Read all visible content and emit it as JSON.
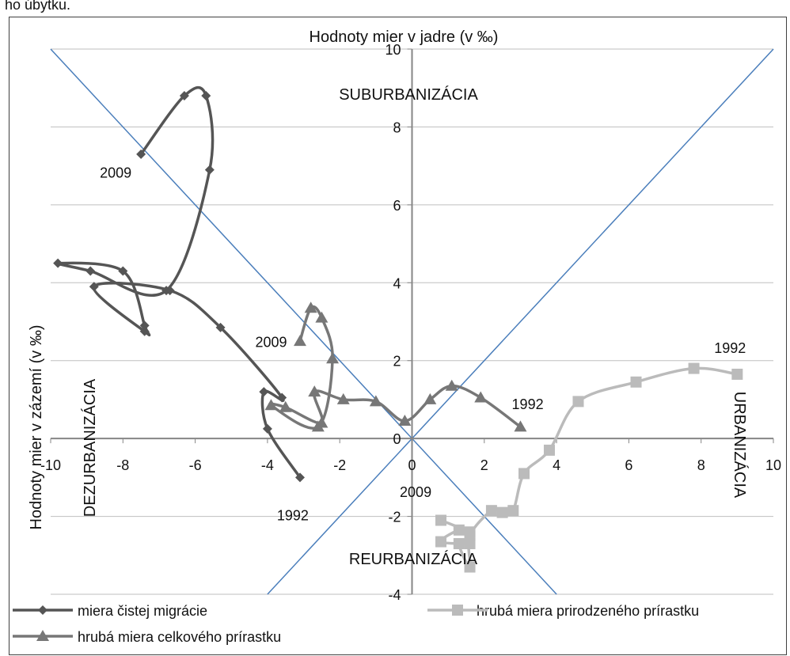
{
  "top_text": "ho úbytku.",
  "chart_data": {
    "type": "scatter",
    "title": "Hodnoty mier  v jadre (v ‰)",
    "xlabel": "",
    "ylabel": "Hodnoty mier v zázemí (v ‰)",
    "xlim": [
      -10,
      10
    ],
    "ylim": [
      -4,
      10
    ],
    "x_ticks": [
      "-10",
      "-8",
      "-6",
      "-4",
      "-2",
      "0",
      "2",
      "4",
      "6",
      "8",
      "10"
    ],
    "y_ticks": [
      "-4",
      "-2",
      "0",
      "2",
      "4",
      "6",
      "8",
      "10"
    ],
    "grid": true,
    "legend_position": "bottom",
    "reference_lines": [
      {
        "x": [
          -10,
          4
        ],
        "y": [
          10,
          -4
        ]
      },
      {
        "x": [
          -4,
          10
        ],
        "y": [
          -4,
          10
        ]
      }
    ],
    "colors": {
      "migration": "#555555",
      "natural": "#bbbbbb",
      "total": "#777777",
      "reference": "#4a7ebb",
      "grid": "#bfbfbf",
      "axis": "#868686"
    },
    "quadrant_labels": {
      "top": "SUBURBANIZÁCIA",
      "bottom": "REURBANIZÁCIA",
      "left": "DEZURBANIZÁCIA",
      "right": "URBANIZÁCIA"
    },
    "series": [
      {
        "name": "miera čistej migrácie",
        "marker": "diamond",
        "points": [
          [
            -3.1,
            -1.0
          ],
          [
            -4.0,
            0.25
          ],
          [
            -4.1,
            1.2
          ],
          [
            -3.6,
            1.05
          ],
          [
            -5.3,
            2.85
          ],
          [
            -6.7,
            3.8
          ],
          [
            -8.8,
            3.9
          ],
          [
            -7.4,
            2.75
          ],
          [
            -7.4,
            2.9
          ],
          [
            -8.0,
            4.3
          ],
          [
            -9.8,
            4.5
          ],
          [
            -8.9,
            4.3
          ],
          [
            -6.8,
            3.8
          ],
          [
            -5.6,
            6.9
          ],
          [
            -5.7,
            8.8
          ],
          [
            -6.3,
            8.8
          ],
          [
            -7.5,
            7.3
          ]
        ]
      },
      {
        "name": "hrubá miera prirodzeného prírastku",
        "marker": "square",
        "points": [
          [
            9.0,
            1.65
          ],
          [
            7.8,
            1.8
          ],
          [
            6.2,
            1.45
          ],
          [
            4.6,
            0.95
          ],
          [
            3.8,
            -0.3
          ],
          [
            3.1,
            -0.9
          ],
          [
            2.8,
            -1.85
          ],
          [
            2.5,
            -1.9
          ],
          [
            2.2,
            -1.85
          ],
          [
            1.6,
            -2.5
          ],
          [
            1.6,
            -3.3
          ],
          [
            1.3,
            -2.7
          ],
          [
            1.6,
            -2.7
          ],
          [
            0.8,
            -2.65
          ],
          [
            1.3,
            -2.35
          ],
          [
            1.6,
            -2.4
          ],
          [
            0.8,
            -2.1
          ]
        ]
      },
      {
        "name": "hrubá miera celkového prírastku",
        "marker": "triangle",
        "points": [
          [
            3.0,
            0.3
          ],
          [
            1.9,
            1.05
          ],
          [
            1.1,
            1.35
          ],
          [
            0.5,
            1.0
          ],
          [
            -0.2,
            0.45
          ],
          [
            -1.0,
            0.95
          ],
          [
            -1.9,
            1.0
          ],
          [
            -2.7,
            1.2
          ],
          [
            -2.5,
            0.4
          ],
          [
            -3.5,
            0.8
          ],
          [
            -3.9,
            0.85
          ],
          [
            -2.6,
            0.3
          ],
          [
            -2.2,
            2.05
          ],
          [
            -2.5,
            3.1
          ],
          [
            -2.8,
            3.35
          ],
          [
            -3.1,
            2.5
          ]
        ]
      }
    ],
    "annotations": [
      {
        "text": "2009",
        "x": -8.2,
        "y": 6.7
      },
      {
        "text": "1992",
        "x": -3.3,
        "y": -2.1
      },
      {
        "text": "2009",
        "x": -3.9,
        "y": 2.35
      },
      {
        "text": "1992",
        "x": 3.2,
        "y": 0.75
      },
      {
        "text": "1992",
        "x": 8.8,
        "y": 2.2
      },
      {
        "text": "2009",
        "x": 0.1,
        "y": -1.5
      }
    ]
  }
}
